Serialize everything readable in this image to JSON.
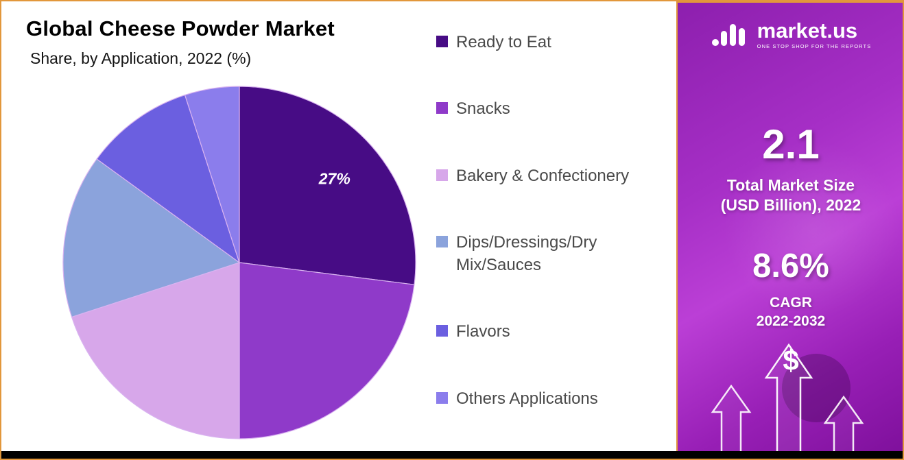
{
  "header": {
    "title": "Global Cheese Powder Market",
    "subtitle": "Share, by Application, 2022 (%)"
  },
  "chart_data": {
    "type": "pie",
    "title": "Global Cheese Powder Market Share, by Application, 2022 (%)",
    "legend_position": "right",
    "start_angle_deg": 0,
    "direction": "clockwise",
    "slices": [
      {
        "label": "Ready to Eat",
        "value": 27,
        "color": "#470c85",
        "data_label": "27%"
      },
      {
        "label": "Snacks",
        "value": 23,
        "color": "#8f3ac9",
        "data_label": ""
      },
      {
        "label": "Bakery & Confectionery",
        "value": 20,
        "color": "#d7a7ea",
        "data_label": ""
      },
      {
        "label": "Dips/Dressings/Dry Mix/Sauces",
        "value": 15,
        "color": "#8ba3dc",
        "data_label": ""
      },
      {
        "label": "Flavors",
        "value": 10,
        "color": "#6b5fe0",
        "data_label": ""
      },
      {
        "label": "Others Applications",
        "value": 5,
        "color": "#8b7dec",
        "data_label": ""
      }
    ]
  },
  "sidebar": {
    "logo_text": "market.us",
    "logo_tagline": "ONE STOP SHOP FOR THE REPORTS",
    "market_size_value": "2.1",
    "market_size_label_line1": "Total Market Size",
    "market_size_label_line2": "(USD Billion), 2022",
    "cagr_value": "8.6%",
    "cagr_label_line1": "CAGR",
    "cagr_label_line2": "2022-2032",
    "dollar_symbol": "$"
  },
  "colors": {
    "frame_border": "#e2973b",
    "panel_purple": "#a62fc6",
    "bottom_bar": "#000000",
    "slice_stroke": "#d9b3f0"
  }
}
